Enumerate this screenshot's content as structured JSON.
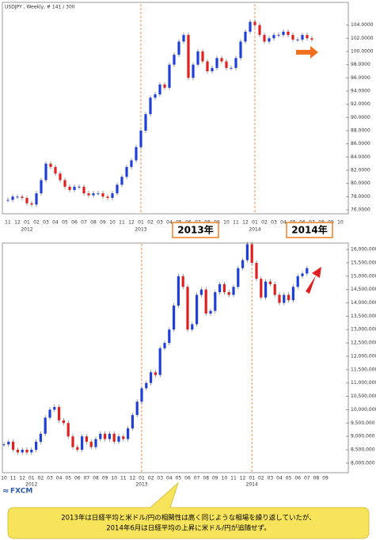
{
  "charts": [
    {
      "type": "candlestick",
      "title": "USDJPY , Weekly, # 141 / 300",
      "months": [
        "11",
        "12",
        "01",
        "02",
        "03",
        "04",
        "05",
        "06",
        "07",
        "08",
        "09",
        "10",
        "11",
        "12",
        "01",
        "02",
        "03",
        "04",
        "05",
        "06",
        "07",
        "08",
        "09",
        "10",
        "11",
        "12",
        "01",
        "02",
        "03",
        "04",
        "05",
        "06",
        "07",
        "08",
        "09",
        "10"
      ],
      "years": [
        "2012",
        "2013",
        "2014"
      ],
      "closes": [
        77.5,
        78,
        78,
        77.8,
        77,
        76.8,
        78.5,
        80.5,
        83,
        82.5,
        81.5,
        80.5,
        79.5,
        79,
        79.5,
        79.5,
        78.5,
        78.2,
        78.5,
        78.5,
        78,
        77.8,
        78.5,
        79.8,
        81,
        82.5,
        83.5,
        85.5,
        88,
        90.5,
        93,
        93.5,
        95,
        94.5,
        98,
        99.5,
        101.5,
        102.5,
        96,
        98,
        100,
        98.5,
        97,
        97.5,
        99,
        98.5,
        97.5,
        97.5,
        99,
        101.5,
        103,
        104.5,
        104,
        102.5,
        101.5,
        102,
        102.5,
        102.5,
        103,
        102.5,
        101.8,
        101.8,
        102.5,
        102,
        101.8
      ],
      "up_color": "#1f3fd6",
      "down_color": "#e02020",
      "ylim": [
        75.4,
        107.2
      ],
      "yticks": [
        {
          "value": 76,
          "label": "76.0000"
        },
        {
          "value": 78,
          "label": "78.0000"
        },
        {
          "value": 80,
          "label": "80.0000"
        },
        {
          "value": 82,
          "label": "82.0000"
        },
        {
          "value": 84,
          "label": "84.0000"
        },
        {
          "value": 86,
          "label": "86.0000"
        },
        {
          "value": 88,
          "label": "88.0000"
        },
        {
          "value": 90,
          "label": "90.0000"
        },
        {
          "value": 92,
          "label": "92.0000"
        },
        {
          "value": 94,
          "label": "94.0000"
        },
        {
          "value": 96,
          "label": "96.0000"
        },
        {
          "value": 98,
          "label": "98.0000"
        },
        {
          "value": 100,
          "label": "100.0000"
        },
        {
          "value": 102,
          "label": "102.0000"
        },
        {
          "value": 104,
          "label": "104.0000"
        }
      ]
    },
    {
      "type": "candlestick",
      "months": [
        "10",
        "11",
        "12",
        "01",
        "02",
        "03",
        "04",
        "05",
        "06",
        "07",
        "08",
        "09",
        "10",
        "11",
        "12",
        "01",
        "02",
        "03",
        "04",
        "05",
        "06",
        "07",
        "08",
        "09",
        "10",
        "11",
        "12",
        "01",
        "02",
        "03",
        "04",
        "05",
        "06",
        "07",
        "08",
        "09"
      ],
      "years": [
        "2012",
        "2013",
        "2014"
      ],
      "closes": [
        8700000,
        8800000,
        8500000,
        8400000,
        8500000,
        8400000,
        8500000,
        8800000,
        9100000,
        9700000,
        10000000,
        10100000,
        9600000,
        9500000,
        9000000,
        8600000,
        8500000,
        9000000,
        8800000,
        8600000,
        8900000,
        9100000,
        8900000,
        9100000,
        8800000,
        9000000,
        8900000,
        9300000,
        9800000,
        10300000,
        10800000,
        11000000,
        11400000,
        11300000,
        12300000,
        12500000,
        13000000,
        13900000,
        15000000,
        14600000,
        13000000,
        13200000,
        14300000,
        14500000,
        13600000,
        13700000,
        14400000,
        14700000,
        14400000,
        14300000,
        14600000,
        15300000,
        15600000,
        16200000,
        15500000,
        14900000,
        14200000,
        14800000,
        14700000,
        14300000,
        14000000,
        14300000,
        14100000,
        14600000,
        15000000,
        15100000,
        15300000
      ],
      "up_color": "#1f3fd6",
      "down_color": "#e02020",
      "ylim": [
        7640000,
        16210000
      ],
      "yticks": [
        {
          "value": 8000000,
          "label": "8,000,000"
        },
        {
          "value": 8500000,
          "label": "8,500,000"
        },
        {
          "value": 9000000,
          "label": "9,000,000"
        },
        {
          "value": 9500000,
          "label": "9,500,000"
        },
        {
          "value": 10000000,
          "label": "10,000,000"
        },
        {
          "value": 10500000,
          "label": "10,500,000"
        },
        {
          "value": 11000000,
          "label": "11,000,000"
        },
        {
          "value": 11500000,
          "label": "11,500,000"
        },
        {
          "value": 12000000,
          "label": "12,000,000"
        },
        {
          "value": 12500000,
          "label": "12,500,000"
        },
        {
          "value": 13000000,
          "label": "13,000,000"
        },
        {
          "value": 13500000,
          "label": "13,500,000"
        },
        {
          "value": 14000000,
          "label": "14,000,000"
        },
        {
          "value": 14500000,
          "label": "14,500,000"
        },
        {
          "value": 15000000,
          "label": "15,000,000"
        },
        {
          "value": 15500000,
          "label": "15,500,000"
        },
        {
          "value": 16000000,
          "label": "16,000,000"
        }
      ]
    }
  ],
  "annotations": {
    "label_2013": "2013年",
    "label_2014": "2014年",
    "logo": "FXCM",
    "callout": [
      "2013年は日経平均と米ドル/円の相関性は高く同じような相場を繰り返していたが、",
      "2014年6月は日経平均の上昇に米ドル/円が追随せず。"
    ]
  }
}
